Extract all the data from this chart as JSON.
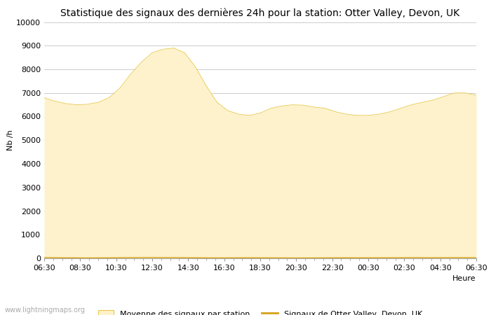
{
  "title": "Statistique des signaux des dernières 24h pour la station: Otter Valley, Devon, UK",
  "xlabel": "Heure",
  "ylabel": "Nb /h",
  "ylim": [
    0,
    10000
  ],
  "yticks": [
    0,
    1000,
    2000,
    3000,
    4000,
    5000,
    6000,
    7000,
    8000,
    9000,
    10000
  ],
  "x_labels": [
    "06:30",
    "08:30",
    "10:30",
    "12:30",
    "14:30",
    "16:30",
    "18:30",
    "20:30",
    "22:30",
    "00:30",
    "02:30",
    "04:30",
    "06:30"
  ],
  "fill_color": "#fdf2cc",
  "fill_edge_color": "#e8c84a",
  "line_color": "#d4a017",
  "background_color": "#ffffff",
  "grid_color": "#cccccc",
  "title_fontsize": 10,
  "axis_fontsize": 8,
  "tick_fontsize": 8,
  "legend_label_fill": "Moyenne des signaux par station",
  "legend_label_line": "Signaux de Otter Valley, Devon, UK",
  "watermark": "www.lightningmaps.org",
  "avg_y": [
    6800,
    6650,
    6550,
    6500,
    6520,
    6600,
    6800,
    7200,
    7800,
    8300,
    8700,
    8850,
    8900,
    8700,
    8100,
    7300,
    6600,
    6250,
    6100,
    6050,
    6150,
    6350,
    6450,
    6500,
    6480,
    6400,
    6350,
    6200,
    6100,
    6050,
    6050,
    6100,
    6200,
    6350,
    6500,
    6600,
    6700,
    6850,
    7000,
    7000,
    6900
  ],
  "station_y": [
    30,
    25,
    20,
    18,
    15,
    18,
    20,
    25,
    28,
    30,
    32,
    30,
    28,
    25,
    22,
    18,
    16,
    18,
    20,
    22,
    20,
    18,
    16,
    15,
    15,
    16,
    18,
    20,
    22,
    20,
    20,
    22,
    22,
    25,
    28,
    26,
    24,
    26,
    28,
    28,
    26
  ]
}
